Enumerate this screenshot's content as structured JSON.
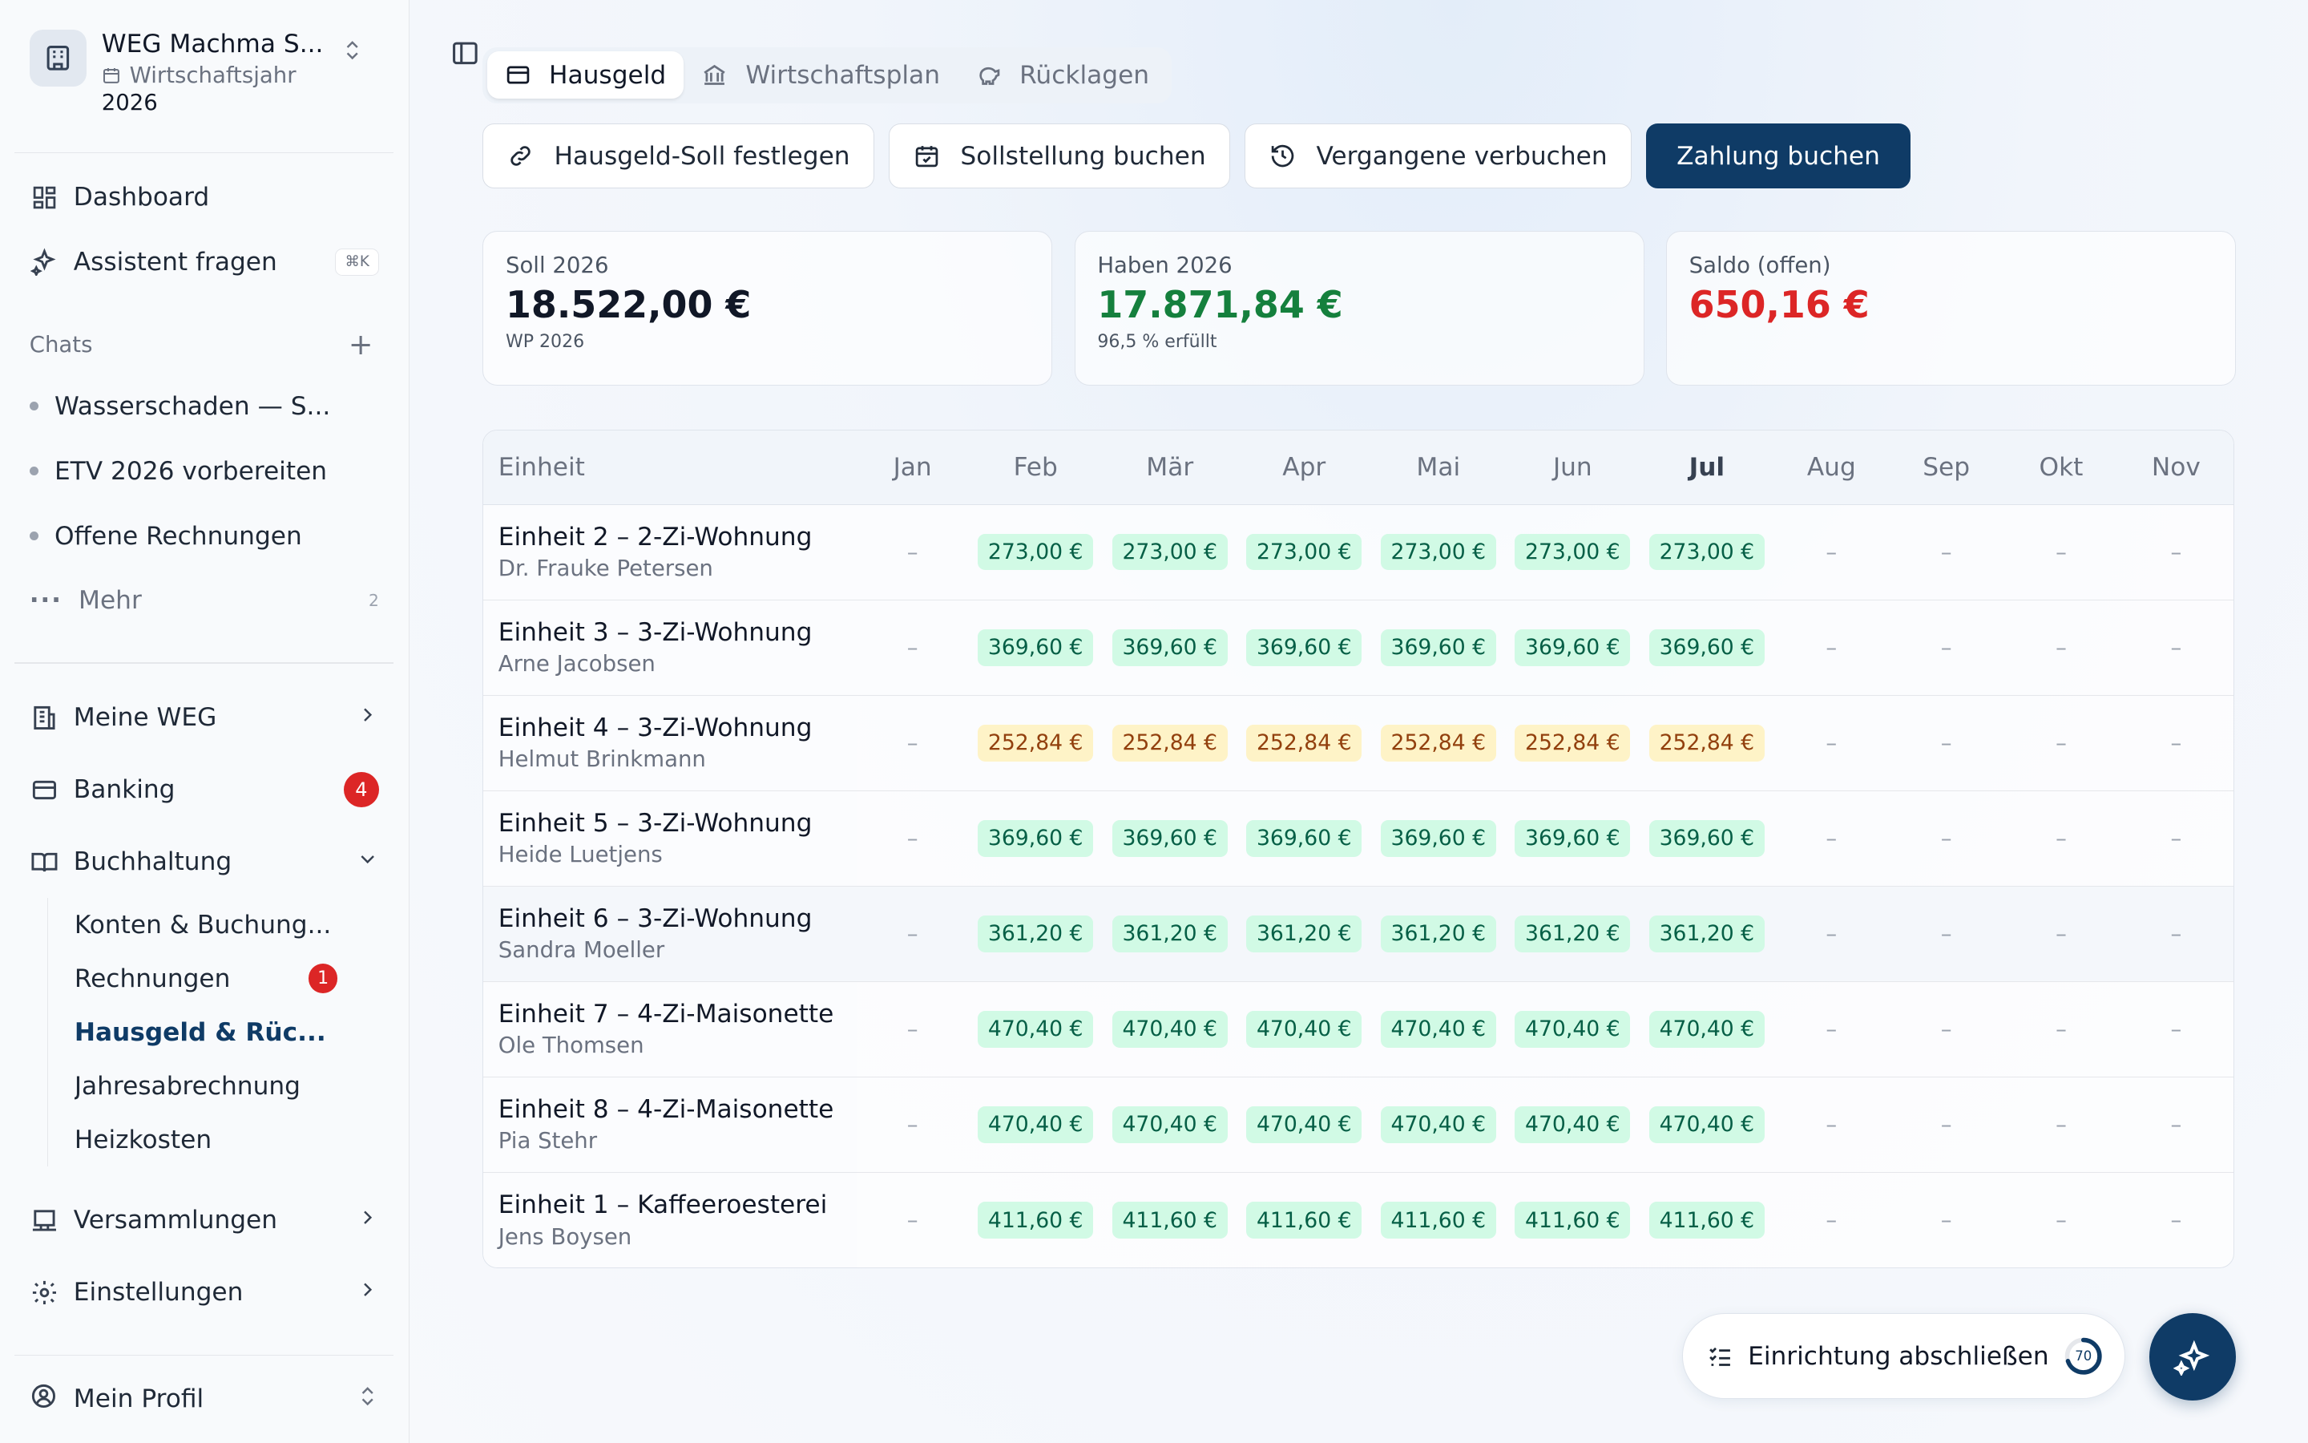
{
  "org": {
    "name": "WEG Machma S...",
    "year_label": "Wirtschaftsjahr",
    "year": "2026"
  },
  "nav": {
    "dashboard": "Dashboard",
    "assistant": "Assistent fragen",
    "assistant_shortcut": "⌘K"
  },
  "chats": {
    "label": "Chats",
    "items": [
      "Wasserschaden — S...",
      "ETV 2026 vorbereiten",
      "Offene Rechnungen"
    ],
    "more_label": "Mehr",
    "more_count": "2"
  },
  "sections": {
    "meine_weg": "Meine WEG",
    "banking": "Banking",
    "banking_badge": "4",
    "buchhaltung": "Buchhaltung",
    "buchhaltung_items": [
      {
        "label": "Konten & Buchung..."
      },
      {
        "label": "Rechnungen",
        "badge": "1"
      },
      {
        "label": "Hausgeld & Rüc..."
      },
      {
        "label": "Jahresabrechnung"
      },
      {
        "label": "Heizkosten"
      }
    ],
    "versammlungen": "Versammlungen",
    "einstellungen": "Einstellungen",
    "profile": "Mein Profil"
  },
  "tabs": [
    "Hausgeld",
    "Wirtschaftsplan",
    "Rücklagen"
  ],
  "actions": {
    "soll_festlegen": "Hausgeld-Soll festlegen",
    "sollstellung": "Sollstellung buchen",
    "vergangene": "Vergangene verbuchen",
    "zahlung": "Zahlung buchen"
  },
  "summary": {
    "soll_label": "Soll 2026",
    "soll_value": "18.522,00 €",
    "soll_sub": "WP 2026",
    "haben_label": "Haben 2026",
    "haben_value": "17.871,84 €",
    "haben_sub": "96,5 % erfüllt",
    "saldo_label": "Saldo (offen)",
    "saldo_value": "650,16 €"
  },
  "table": {
    "unit_header": "Einheit",
    "months": [
      "Jan",
      "Feb",
      "Mär",
      "Apr",
      "Mai",
      "Jun",
      "Jul",
      "Aug",
      "Sep",
      "Okt",
      "Nov"
    ],
    "current_month": "Jul",
    "rows": [
      {
        "unit": "Einheit 2 – 2-Zi-Wohnung",
        "owner": "Dr. Frauke Petersen",
        "status": "paid",
        "cells": [
          "–",
          "273,00 €",
          "273,00 €",
          "273,00 €",
          "273,00 €",
          "273,00 €",
          "273,00 €",
          "–",
          "–",
          "–",
          "–"
        ]
      },
      {
        "unit": "Einheit 3 – 3-Zi-Wohnung",
        "owner": "Arne Jacobsen",
        "status": "paid",
        "cells": [
          "–",
          "369,60 €",
          "369,60 €",
          "369,60 €",
          "369,60 €",
          "369,60 €",
          "369,60 €",
          "–",
          "–",
          "–",
          "–"
        ]
      },
      {
        "unit": "Einheit 4 – 3-Zi-Wohnung",
        "owner": "Helmut Brinkmann",
        "status": "partial",
        "cells": [
          "–",
          "252,84 €",
          "252,84 €",
          "252,84 €",
          "252,84 €",
          "252,84 €",
          "252,84 €",
          "–",
          "–",
          "–",
          "–"
        ]
      },
      {
        "unit": "Einheit 5 – 3-Zi-Wohnung",
        "owner": "Heide Luetjens",
        "status": "paid",
        "cells": [
          "–",
          "369,60 €",
          "369,60 €",
          "369,60 €",
          "369,60 €",
          "369,60 €",
          "369,60 €",
          "–",
          "–",
          "–",
          "–"
        ]
      },
      {
        "unit": "Einheit 6 – 3-Zi-Wohnung",
        "owner": "Sandra Moeller",
        "status": "paid",
        "cells": [
          "–",
          "361,20 €",
          "361,20 €",
          "361,20 €",
          "361,20 €",
          "361,20 €",
          "361,20 €",
          "–",
          "–",
          "–",
          "–"
        ]
      },
      {
        "unit": "Einheit 7 – 4-Zi-Maisonette",
        "owner": "Ole Thomsen",
        "status": "paid",
        "cells": [
          "–",
          "470,40 €",
          "470,40 €",
          "470,40 €",
          "470,40 €",
          "470,40 €",
          "470,40 €",
          "–",
          "–",
          "–",
          "–"
        ]
      },
      {
        "unit": "Einheit 8 – 4-Zi-Maisonette",
        "owner": "Pia Stehr",
        "status": "paid",
        "cells": [
          "–",
          "470,40 €",
          "470,40 €",
          "470,40 €",
          "470,40 €",
          "470,40 €",
          "470,40 €",
          "–",
          "–",
          "–",
          "–"
        ]
      },
      {
        "unit": "Einheit 1 – Kaffeeroesterei",
        "owner": "Jens Boysen",
        "status": "paid",
        "cells": [
          "–",
          "411,60 €",
          "411,60 €",
          "411,60 €",
          "411,60 €",
          "411,60 €",
          "411,60 €",
          "–",
          "–",
          "–",
          "–"
        ]
      }
    ]
  },
  "setup": {
    "label": "Einrichtung abschließen",
    "progress": "70"
  },
  "colors": {
    "primary": "#0f3b66",
    "positive": "#15803d",
    "negative": "#dc2626",
    "paid_bg": "#d1fae5",
    "partial_bg": "#fef3c7"
  }
}
